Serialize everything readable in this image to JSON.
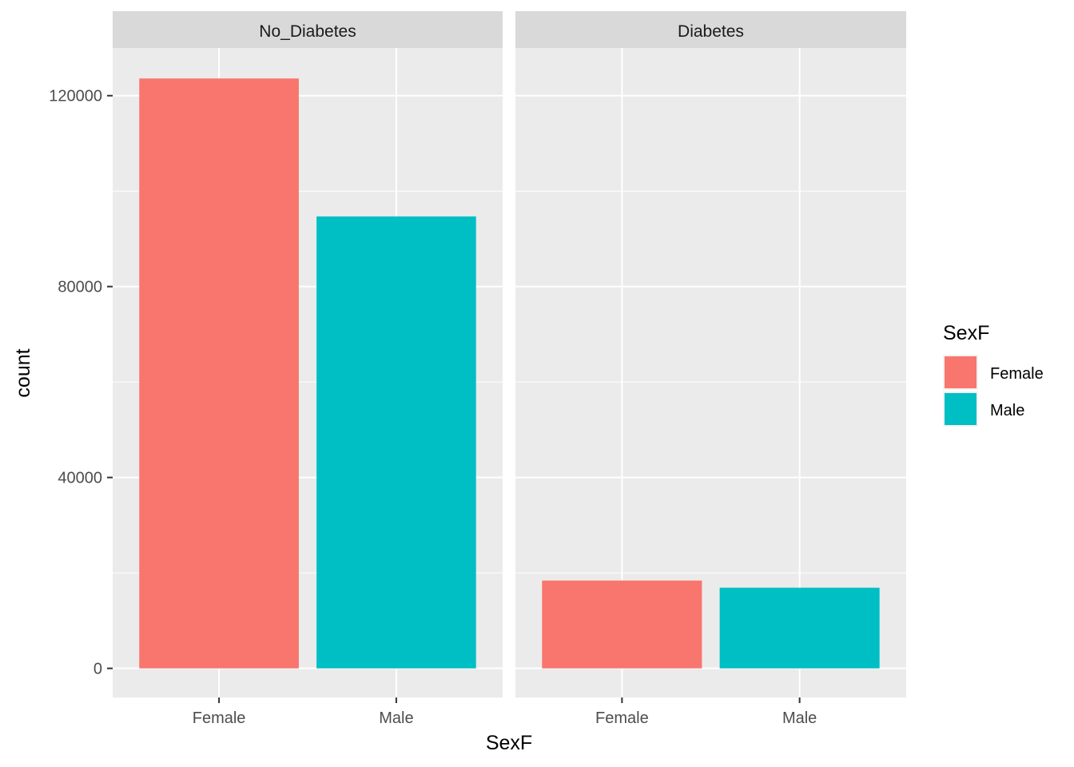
{
  "chart_data": {
    "type": "bar",
    "facet_variable": "diabetes status",
    "panels": [
      {
        "strip_label": "No_Diabetes",
        "categories": [
          "Female",
          "Male"
        ],
        "values": [
          123600,
          94700
        ]
      },
      {
        "strip_label": "Diabetes",
        "categories": [
          "Female",
          "Male"
        ],
        "values": [
          18400,
          16900
        ]
      }
    ],
    "xlabel": "SexF",
    "ylabel": "count",
    "ylim": [
      -6100,
      130000
    ],
    "y_ticks": [
      0,
      40000,
      80000,
      120000
    ],
    "y_tick_labels": [
      "0",
      "40000",
      "80000",
      "120000"
    ],
    "y_minor_ticks": [
      20000,
      60000,
      100000
    ],
    "grid": true,
    "legend": {
      "title": "SexF",
      "position": "right",
      "items": [
        {
          "label": "Female",
          "color": "#F8766D"
        },
        {
          "label": "Male",
          "color": "#00BFC4"
        }
      ]
    },
    "colors": {
      "panel_background": "#EBEBEB",
      "strip_background": "#D9D9D9",
      "grid": "#FFFFFF",
      "Female": "#F8766D",
      "Male": "#00BFC4"
    }
  }
}
